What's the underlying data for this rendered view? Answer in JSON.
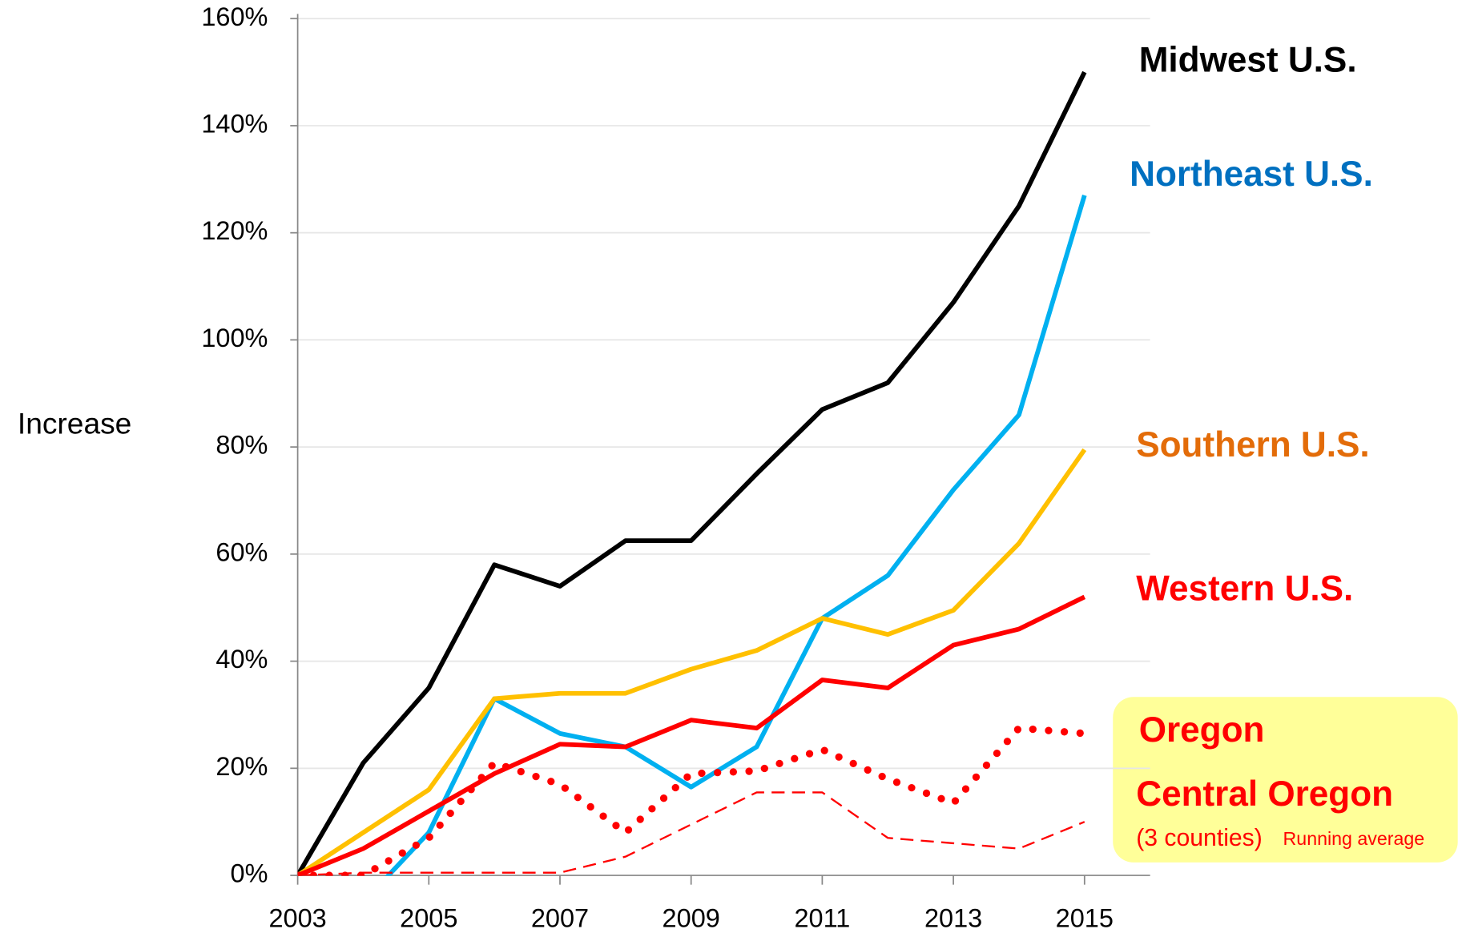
{
  "chart_data": {
    "type": "line",
    "y_label": "Increase",
    "x": [
      2003,
      2004,
      2005,
      2006,
      2007,
      2008,
      2009,
      2010,
      2011,
      2012,
      2013,
      2014,
      2015
    ],
    "xlim": [
      2003,
      2016
    ],
    "xticks": [
      2003,
      2005,
      2007,
      2009,
      2011,
      2013,
      2015
    ],
    "ylim": [
      0,
      160
    ],
    "yticks": [
      {
        "value": 0,
        "label": "0%"
      },
      {
        "value": 20,
        "label": "20%"
      },
      {
        "value": 40,
        "label": "40%"
      },
      {
        "value": 60,
        "label": "60%"
      },
      {
        "value": 80,
        "label": "80%"
      },
      {
        "value": 100,
        "label": "100%"
      },
      {
        "value": 120,
        "label": "120%"
      },
      {
        "value": 140,
        "label": "140%"
      },
      {
        "value": 160,
        "label": "160%"
      }
    ],
    "grid": true,
    "series": [
      {
        "name": "Midwest U.S.",
        "color": "#000000",
        "label_color": "#000000",
        "style": "solid",
        "values": [
          0,
          21,
          35,
          58,
          54,
          62.5,
          62.5,
          75,
          87,
          92,
          107,
          125,
          150
        ]
      },
      {
        "name": "Northeast U.S.",
        "color": "#00b0f0",
        "label_color": "#0070c0",
        "style": "solid",
        "values": [
          0,
          -5,
          8,
          33,
          26.5,
          24,
          16.5,
          24,
          48,
          56,
          72,
          86,
          127
        ]
      },
      {
        "name": "Southern U.S.",
        "color": "#ffc000",
        "label_color": "#e36c09",
        "style": "solid",
        "values": [
          0,
          8,
          16,
          33,
          34,
          34,
          38.5,
          42,
          48,
          45,
          49.5,
          62,
          79.5
        ]
      },
      {
        "name": "Western U.S.",
        "color": "#ff0000",
        "label_color": "#ff0000",
        "style": "solid",
        "values": [
          0,
          5,
          12,
          19,
          24.5,
          24,
          29,
          27.5,
          36.5,
          35,
          43,
          46,
          52
        ]
      },
      {
        "name": "Oregon",
        "color": "#ff0000",
        "label_color": "#ff0000",
        "style": "dotted",
        "values": [
          0,
          0,
          7,
          21,
          17,
          8,
          19,
          19.5,
          23.5,
          18,
          13.5,
          27.5,
          26.5
        ]
      },
      {
        "name": "Central Oregon",
        "color": "#ff0000",
        "label_color": "#ff0000",
        "style": "dashed",
        "values": [
          0,
          0.5,
          0.5,
          0.5,
          0.5,
          3.5,
          9.5,
          15.5,
          15.5,
          7,
          6,
          5,
          10
        ]
      }
    ],
    "annotations": [
      "(3 counties)",
      "Running average"
    ]
  }
}
